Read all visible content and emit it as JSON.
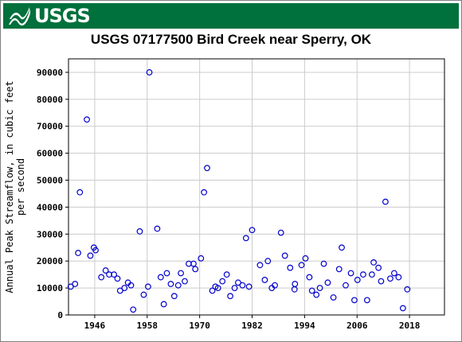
{
  "banner": {
    "agency": "USGS",
    "color": "#00703c"
  },
  "chart_data": {
    "type": "scatter",
    "title": "USGS 07177500 Bird Creek near Sperry, OK",
    "xlabel": "",
    "ylabel": [
      "Annual Peak Streamflow, in cubic feet",
      "per second"
    ],
    "xlim": [
      1940,
      2026
    ],
    "ylim": [
      0,
      95000
    ],
    "xticks": [
      1946,
      1958,
      1970,
      1982,
      1994,
      2006,
      2018
    ],
    "yticks": [
      0,
      10000,
      20000,
      30000,
      40000,
      50000,
      60000,
      70000,
      80000,
      90000
    ],
    "grid": true,
    "marker": "open-circle",
    "marker_color": "#0000cc",
    "series": [
      {
        "points": [
          [
            1940.5,
            10500
          ],
          [
            1941.5,
            11500
          ],
          [
            1942.2,
            23000
          ],
          [
            1942.6,
            45500
          ],
          [
            1944.2,
            72500
          ],
          [
            1945.0,
            22000
          ],
          [
            1945.8,
            25000
          ],
          [
            1946.2,
            24000
          ],
          [
            1947.5,
            14000
          ],
          [
            1948.5,
            16500
          ],
          [
            1949.3,
            15000
          ],
          [
            1950.4,
            15000
          ],
          [
            1951.2,
            13500
          ],
          [
            1951.8,
            9000
          ],
          [
            1952.8,
            10000
          ],
          [
            1953.6,
            12000
          ],
          [
            1954.3,
            11000
          ],
          [
            1954.8,
            2000
          ],
          [
            1956.3,
            31000
          ],
          [
            1957.2,
            7500
          ],
          [
            1958.2,
            10500
          ],
          [
            1958.5,
            90000
          ],
          [
            1960.3,
            32000
          ],
          [
            1961.1,
            14000
          ],
          [
            1961.8,
            4000
          ],
          [
            1962.5,
            15500
          ],
          [
            1963.4,
            11500
          ],
          [
            1964.2,
            7000
          ],
          [
            1965.1,
            11000
          ],
          [
            1965.7,
            15500
          ],
          [
            1966.6,
            12500
          ],
          [
            1967.5,
            19000
          ],
          [
            1968.6,
            19000
          ],
          [
            1969.0,
            17000
          ],
          [
            1970.3,
            21000
          ],
          [
            1971.0,
            45500
          ],
          [
            1971.7,
            54500
          ],
          [
            1972.9,
            9000
          ],
          [
            1973.6,
            10500
          ],
          [
            1974.2,
            10000
          ],
          [
            1975.2,
            12500
          ],
          [
            1976.2,
            15000
          ],
          [
            1977.0,
            7000
          ],
          [
            1978.0,
            10000
          ],
          [
            1978.8,
            12000
          ],
          [
            1979.8,
            11000
          ],
          [
            1980.6,
            28500
          ],
          [
            1981.3,
            10500
          ],
          [
            1982.0,
            31500
          ],
          [
            1983.8,
            18500
          ],
          [
            1984.9,
            13000
          ],
          [
            1985.6,
            20000
          ],
          [
            1986.5,
            10000
          ],
          [
            1987.2,
            11000
          ],
          [
            1988.6,
            30500
          ],
          [
            1989.5,
            22000
          ],
          [
            1990.7,
            17500
          ],
          [
            1991.7,
            9500
          ],
          [
            1991.8,
            11500
          ],
          [
            1993.3,
            18500
          ],
          [
            1994.2,
            21000
          ],
          [
            1995.1,
            14000
          ],
          [
            1995.7,
            9000
          ],
          [
            1996.7,
            7500
          ],
          [
            1997.5,
            10000
          ],
          [
            1998.4,
            19000
          ],
          [
            1999.3,
            12000
          ],
          [
            2000.6,
            6500
          ],
          [
            2001.9,
            17000
          ],
          [
            2002.5,
            25000
          ],
          [
            2003.4,
            11000
          ],
          [
            2004.6,
            15500
          ],
          [
            2005.4,
            5500
          ],
          [
            2006.1,
            13000
          ],
          [
            2007.4,
            15000
          ],
          [
            2008.3,
            5500
          ],
          [
            2009.4,
            15000
          ],
          [
            2009.8,
            19500
          ],
          [
            2010.9,
            17500
          ],
          [
            2011.5,
            12500
          ],
          [
            2012.5,
            42000
          ],
          [
            2013.6,
            13500
          ],
          [
            2014.5,
            15500
          ],
          [
            2015.5,
            14000
          ],
          [
            2016.5,
            2500
          ],
          [
            2017.5,
            9500
          ]
        ]
      }
    ]
  }
}
